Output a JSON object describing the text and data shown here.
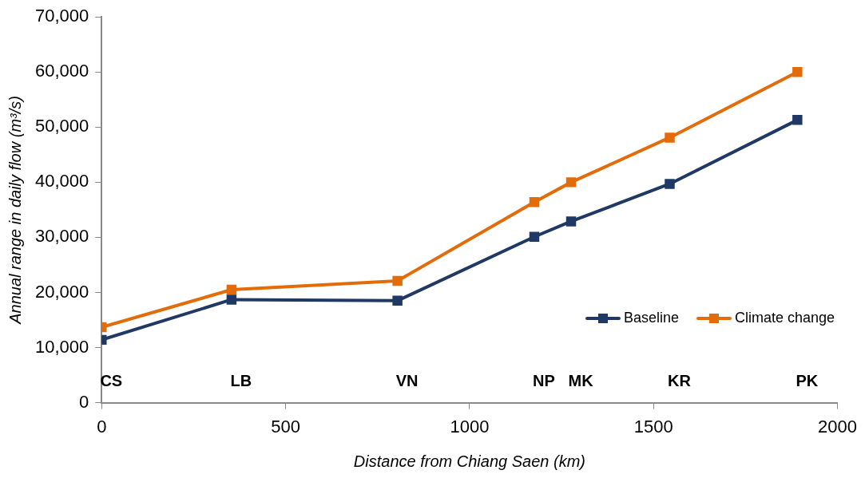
{
  "chart_data": {
    "type": "line",
    "xlabel": "Distance from Chiang Saen (km)",
    "ylabel": "Annual range in daily flow (m³/s)",
    "x": [
      0,
      353,
      804,
      1176,
      1276,
      1544,
      1891
    ],
    "series": [
      {
        "name": "Baseline",
        "color": "#1f3864",
        "values": [
          11400,
          18700,
          18500,
          30100,
          32900,
          39700,
          51300
        ]
      },
      {
        "name": "Climate change",
        "color": "#e36c0a",
        "values": [
          13700,
          20500,
          22100,
          36400,
          40000,
          48100,
          60000
        ]
      }
    ],
    "xlim": [
      0,
      2000
    ],
    "xticks": [
      0,
      500,
      1000,
      1500,
      2000
    ],
    "ylim": [
      0,
      70000
    ],
    "yticks": [
      0,
      {
        "value": 10000,
        "label": "10,000"
      },
      {
        "value": 20000,
        "label": "20,000"
      },
      {
        "value": 30000,
        "label": "30,000"
      },
      {
        "value": 40000,
        "label": "40,000"
      },
      {
        "value": 50000,
        "label": "50,000"
      },
      {
        "value": 60000,
        "label": "60,000"
      },
      {
        "value": 70000,
        "label": "70,000"
      }
    ],
    "annotations": [
      "CS",
      "LB",
      "VN",
      "NP",
      "MK",
      "KR",
      "PK"
    ],
    "grid": false,
    "legend": "bottom right",
    "marker": "square",
    "line_style": "solid"
  }
}
